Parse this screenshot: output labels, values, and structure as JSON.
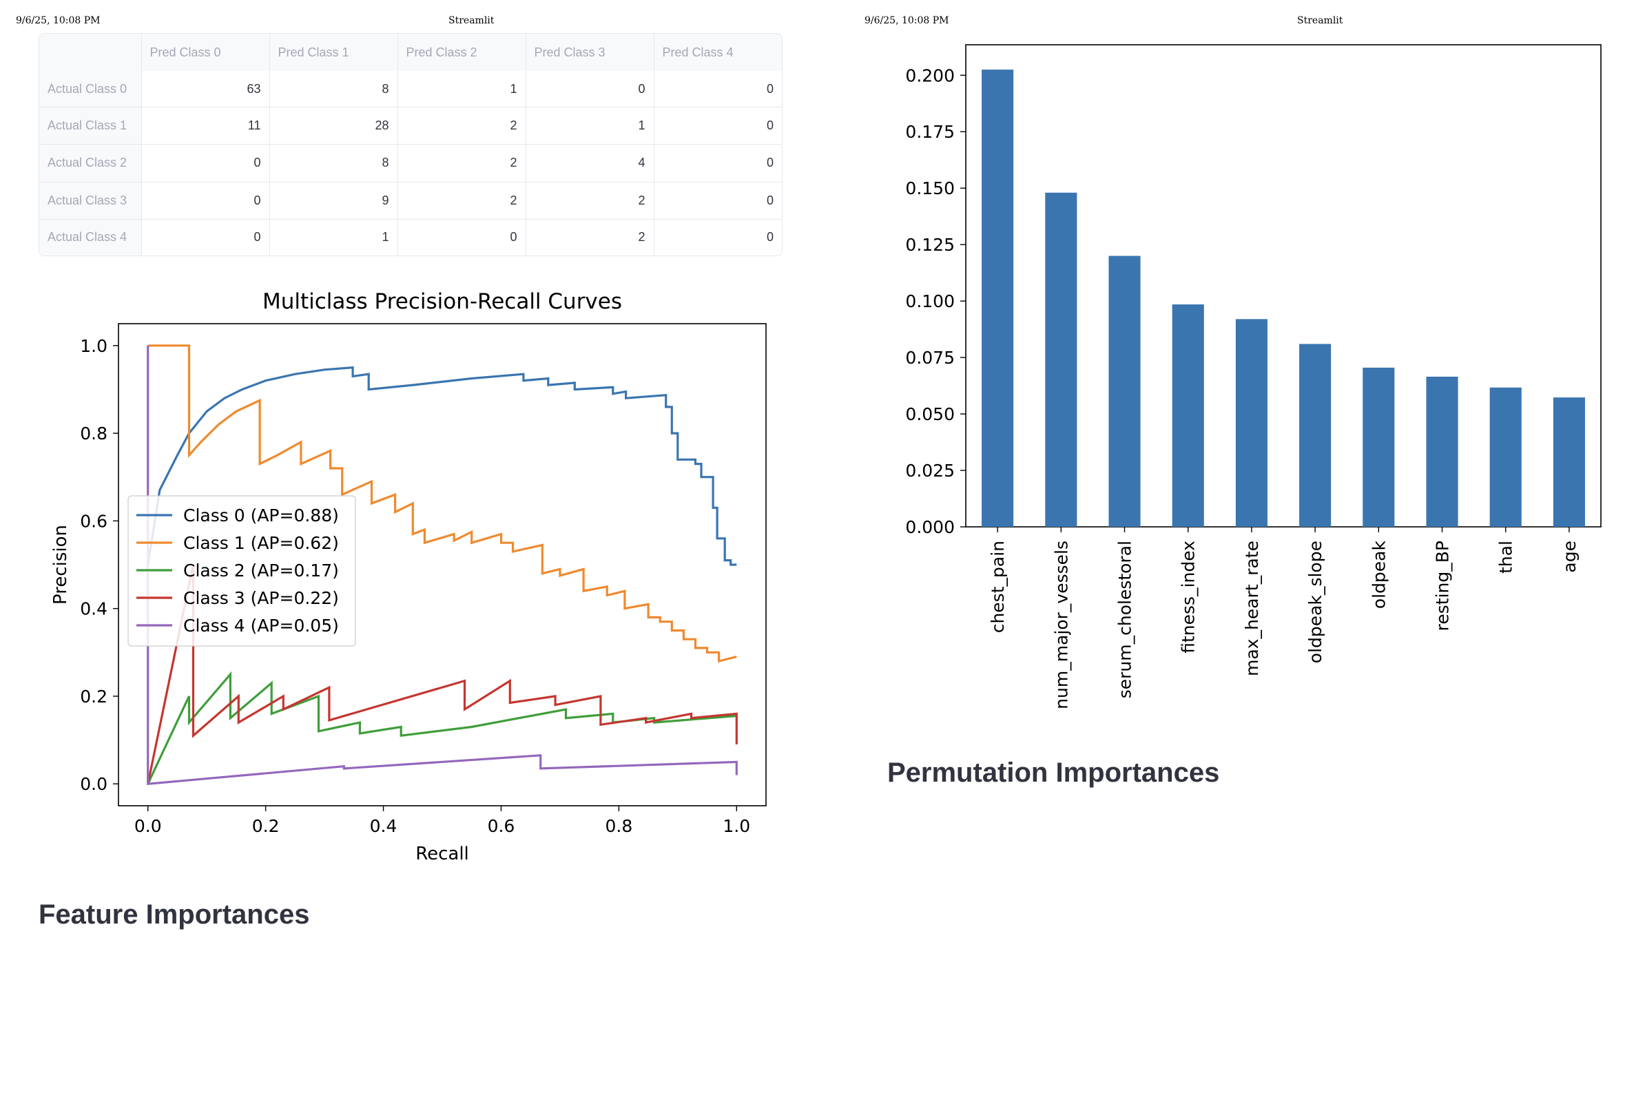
{
  "print_header": {
    "left_datetime": "9/6/25, 10:08 PM",
    "left_title": "Streamlit",
    "right_datetime": "9/6/25, 10:08 PM",
    "right_title": "Streamlit"
  },
  "confusion_table": {
    "columns": [
      "Pred Class 0",
      "Pred Class 1",
      "Pred Class 2",
      "Pred Class 3",
      "Pred Class 4"
    ],
    "rows": [
      {
        "label": "Actual Class 0",
        "values": [
          "63",
          "8",
          "1",
          "0",
          "0"
        ]
      },
      {
        "label": "Actual Class 1",
        "values": [
          "11",
          "28",
          "2",
          "1",
          "0"
        ]
      },
      {
        "label": "Actual Class 2",
        "values": [
          "0",
          "8",
          "2",
          "4",
          "0"
        ]
      },
      {
        "label": "Actual Class 3",
        "values": [
          "0",
          "9",
          "2",
          "2",
          "0"
        ]
      },
      {
        "label": "Actual Class 4",
        "values": [
          "0",
          "1",
          "0",
          "2",
          "0"
        ]
      }
    ]
  },
  "headings": {
    "feature_importances": "Feature Importances",
    "permutation_importances": "Permutation Importances"
  },
  "chart_data": [
    {
      "type": "line",
      "title": "Multiclass Precision-Recall Curves",
      "xlabel": "Recall",
      "ylabel": "Precision",
      "xlim": [
        -0.05,
        1.05
      ],
      "ylim": [
        -0.05,
        1.05
      ],
      "xticks": [
        "0.0",
        "0.2",
        "0.4",
        "0.6",
        "0.8",
        "1.0"
      ],
      "yticks": [
        "0.0",
        "0.2",
        "0.4",
        "0.6",
        "0.8",
        "1.0"
      ],
      "grid": false,
      "legend_position": "center-left",
      "series": [
        {
          "name": "Class 0 (AP=0.88)",
          "color": "#3a75b0",
          "points": [
            [
              0,
              0.5
            ],
            [
              0.02,
              0.67
            ],
            [
              0.05,
              0.75
            ],
            [
              0.07,
              0.8
            ],
            [
              0.1,
              0.85
            ],
            [
              0.13,
              0.88
            ],
            [
              0.16,
              0.9
            ],
            [
              0.2,
              0.92
            ],
            [
              0.25,
              0.935
            ],
            [
              0.3,
              0.945
            ],
            [
              0.348,
              0.95
            ],
            [
              0.348,
              0.93
            ],
            [
              0.375,
              0.935
            ],
            [
              0.375,
              0.9
            ],
            [
              0.45,
              0.91
            ],
            [
              0.55,
              0.925
            ],
            [
              0.638,
              0.935
            ],
            [
              0.638,
              0.92
            ],
            [
              0.68,
              0.925
            ],
            [
              0.68,
              0.91
            ],
            [
              0.725,
              0.915
            ],
            [
              0.725,
              0.9
            ],
            [
              0.79,
              0.905
            ],
            [
              0.79,
              0.89
            ],
            [
              0.812,
              0.895
            ],
            [
              0.812,
              0.88
            ],
            [
              0.88,
              0.887
            ],
            [
              0.88,
              0.86
            ],
            [
              0.89,
              0.86
            ],
            [
              0.89,
              0.8
            ],
            [
              0.9,
              0.8
            ],
            [
              0.9,
              0.74
            ],
            [
              0.93,
              0.74
            ],
            [
              0.93,
              0.73
            ],
            [
              0.94,
              0.73
            ],
            [
              0.94,
              0.7
            ],
            [
              0.96,
              0.7
            ],
            [
              0.96,
              0.63
            ],
            [
              0.967,
              0.63
            ],
            [
              0.967,
              0.56
            ],
            [
              0.98,
              0.56
            ],
            [
              0.98,
              0.51
            ],
            [
              0.99,
              0.51
            ],
            [
              0.99,
              0.5
            ],
            [
              1.0,
              0.5
            ]
          ]
        },
        {
          "name": "Class 1 (AP=0.62)",
          "color": "#ef8a2e",
          "points": [
            [
              0,
              1.0
            ],
            [
              0.07,
              1.0
            ],
            [
              0.07,
              0.75
            ],
            [
              0.09,
              0.78
            ],
            [
              0.12,
              0.82
            ],
            [
              0.15,
              0.85
            ],
            [
              0.19,
              0.875
            ],
            [
              0.19,
              0.73
            ],
            [
              0.22,
              0.75
            ],
            [
              0.26,
              0.78
            ],
            [
              0.26,
              0.73
            ],
            [
              0.31,
              0.76
            ],
            [
              0.31,
              0.72
            ],
            [
              0.33,
              0.72
            ],
            [
              0.33,
              0.66
            ],
            [
              0.38,
              0.69
            ],
            [
              0.38,
              0.64
            ],
            [
              0.42,
              0.66
            ],
            [
              0.42,
              0.62
            ],
            [
              0.45,
              0.64
            ],
            [
              0.45,
              0.57
            ],
            [
              0.47,
              0.58
            ],
            [
              0.47,
              0.55
            ],
            [
              0.52,
              0.57
            ],
            [
              0.52,
              0.555
            ],
            [
              0.55,
              0.575
            ],
            [
              0.55,
              0.55
            ],
            [
              0.6,
              0.57
            ],
            [
              0.6,
              0.55
            ],
            [
              0.62,
              0.55
            ],
            [
              0.62,
              0.53
            ],
            [
              0.67,
              0.545
            ],
            [
              0.67,
              0.48
            ],
            [
              0.7,
              0.49
            ],
            [
              0.7,
              0.475
            ],
            [
              0.74,
              0.49
            ],
            [
              0.74,
              0.44
            ],
            [
              0.78,
              0.45
            ],
            [
              0.78,
              0.43
            ],
            [
              0.81,
              0.44
            ],
            [
              0.81,
              0.4
            ],
            [
              0.85,
              0.41
            ],
            [
              0.85,
              0.38
            ],
            [
              0.87,
              0.38
            ],
            [
              0.87,
              0.37
            ],
            [
              0.89,
              0.37
            ],
            [
              0.89,
              0.35
            ],
            [
              0.91,
              0.35
            ],
            [
              0.91,
              0.33
            ],
            [
              0.93,
              0.33
            ],
            [
              0.93,
              0.31
            ],
            [
              0.95,
              0.31
            ],
            [
              0.95,
              0.3
            ],
            [
              0.97,
              0.3
            ],
            [
              0.97,
              0.28
            ],
            [
              1.0,
              0.29
            ]
          ]
        },
        {
          "name": "Class 2 (AP=0.17)",
          "color": "#3f9e3b",
          "points": [
            [
              0,
              0.0
            ],
            [
              0.07,
              0.2
            ],
            [
              0.07,
              0.14
            ],
            [
              0.14,
              0.25
            ],
            [
              0.14,
              0.15
            ],
            [
              0.21,
              0.23
            ],
            [
              0.21,
              0.16
            ],
            [
              0.29,
              0.2
            ],
            [
              0.29,
              0.12
            ],
            [
              0.36,
              0.14
            ],
            [
              0.36,
              0.115
            ],
            [
              0.43,
              0.13
            ],
            [
              0.43,
              0.11
            ],
            [
              0.55,
              0.13
            ],
            [
              0.71,
              0.17
            ],
            [
              0.71,
              0.15
            ],
            [
              0.79,
              0.16
            ],
            [
              0.79,
              0.14
            ],
            [
              0.86,
              0.15
            ],
            [
              0.86,
              0.14
            ],
            [
              1.0,
              0.155
            ]
          ]
        },
        {
          "name": "Class 3 (AP=0.22)",
          "color": "#c4362f",
          "points": [
            [
              0,
              0.0
            ],
            [
              0.077,
              0.5
            ],
            [
              0.077,
              0.11
            ],
            [
              0.154,
              0.2
            ],
            [
              0.154,
              0.14
            ],
            [
              0.23,
              0.2
            ],
            [
              0.23,
              0.17
            ],
            [
              0.308,
              0.22
            ],
            [
              0.308,
              0.145
            ],
            [
              0.538,
              0.235
            ],
            [
              0.538,
              0.17
            ],
            [
              0.615,
              0.235
            ],
            [
              0.615,
              0.185
            ],
            [
              0.692,
              0.2
            ],
            [
              0.692,
              0.18
            ],
            [
              0.769,
              0.2
            ],
            [
              0.769,
              0.135
            ],
            [
              0.846,
              0.15
            ],
            [
              0.846,
              0.14
            ],
            [
              0.923,
              0.16
            ],
            [
              0.923,
              0.15
            ],
            [
              1.0,
              0.16
            ],
            [
              1.0,
              0.09
            ]
          ]
        },
        {
          "name": "Class 4 (AP=0.05)",
          "color": "#9467bd",
          "points": [
            [
              0,
              1.0
            ],
            [
              0,
              0.0
            ],
            [
              0.333,
              0.04
            ],
            [
              0.333,
              0.035
            ],
            [
              0.667,
              0.065
            ],
            [
              0.667,
              0.035
            ],
            [
              1.0,
              0.05
            ],
            [
              1.0,
              0.02
            ]
          ]
        }
      ]
    },
    {
      "type": "bar",
      "color": "#3a75b0",
      "categories": [
        "chest_pain",
        "num_major_vessels",
        "serum_cholestoral",
        "fitness_index",
        "max_heart_rate",
        "oldpeak_slope",
        "oldpeak",
        "resting_BP",
        "thal",
        "age"
      ],
      "values": [
        0.2025,
        0.148,
        0.12,
        0.0985,
        0.092,
        0.081,
        0.0705,
        0.0665,
        0.0617,
        0.0573
      ],
      "ylim": [
        0.0,
        0.2135
      ],
      "yticks": [
        "0.000",
        "0.025",
        "0.050",
        "0.075",
        "0.100",
        "0.125",
        "0.150",
        "0.175",
        "0.200"
      ],
      "grid": false
    }
  ]
}
